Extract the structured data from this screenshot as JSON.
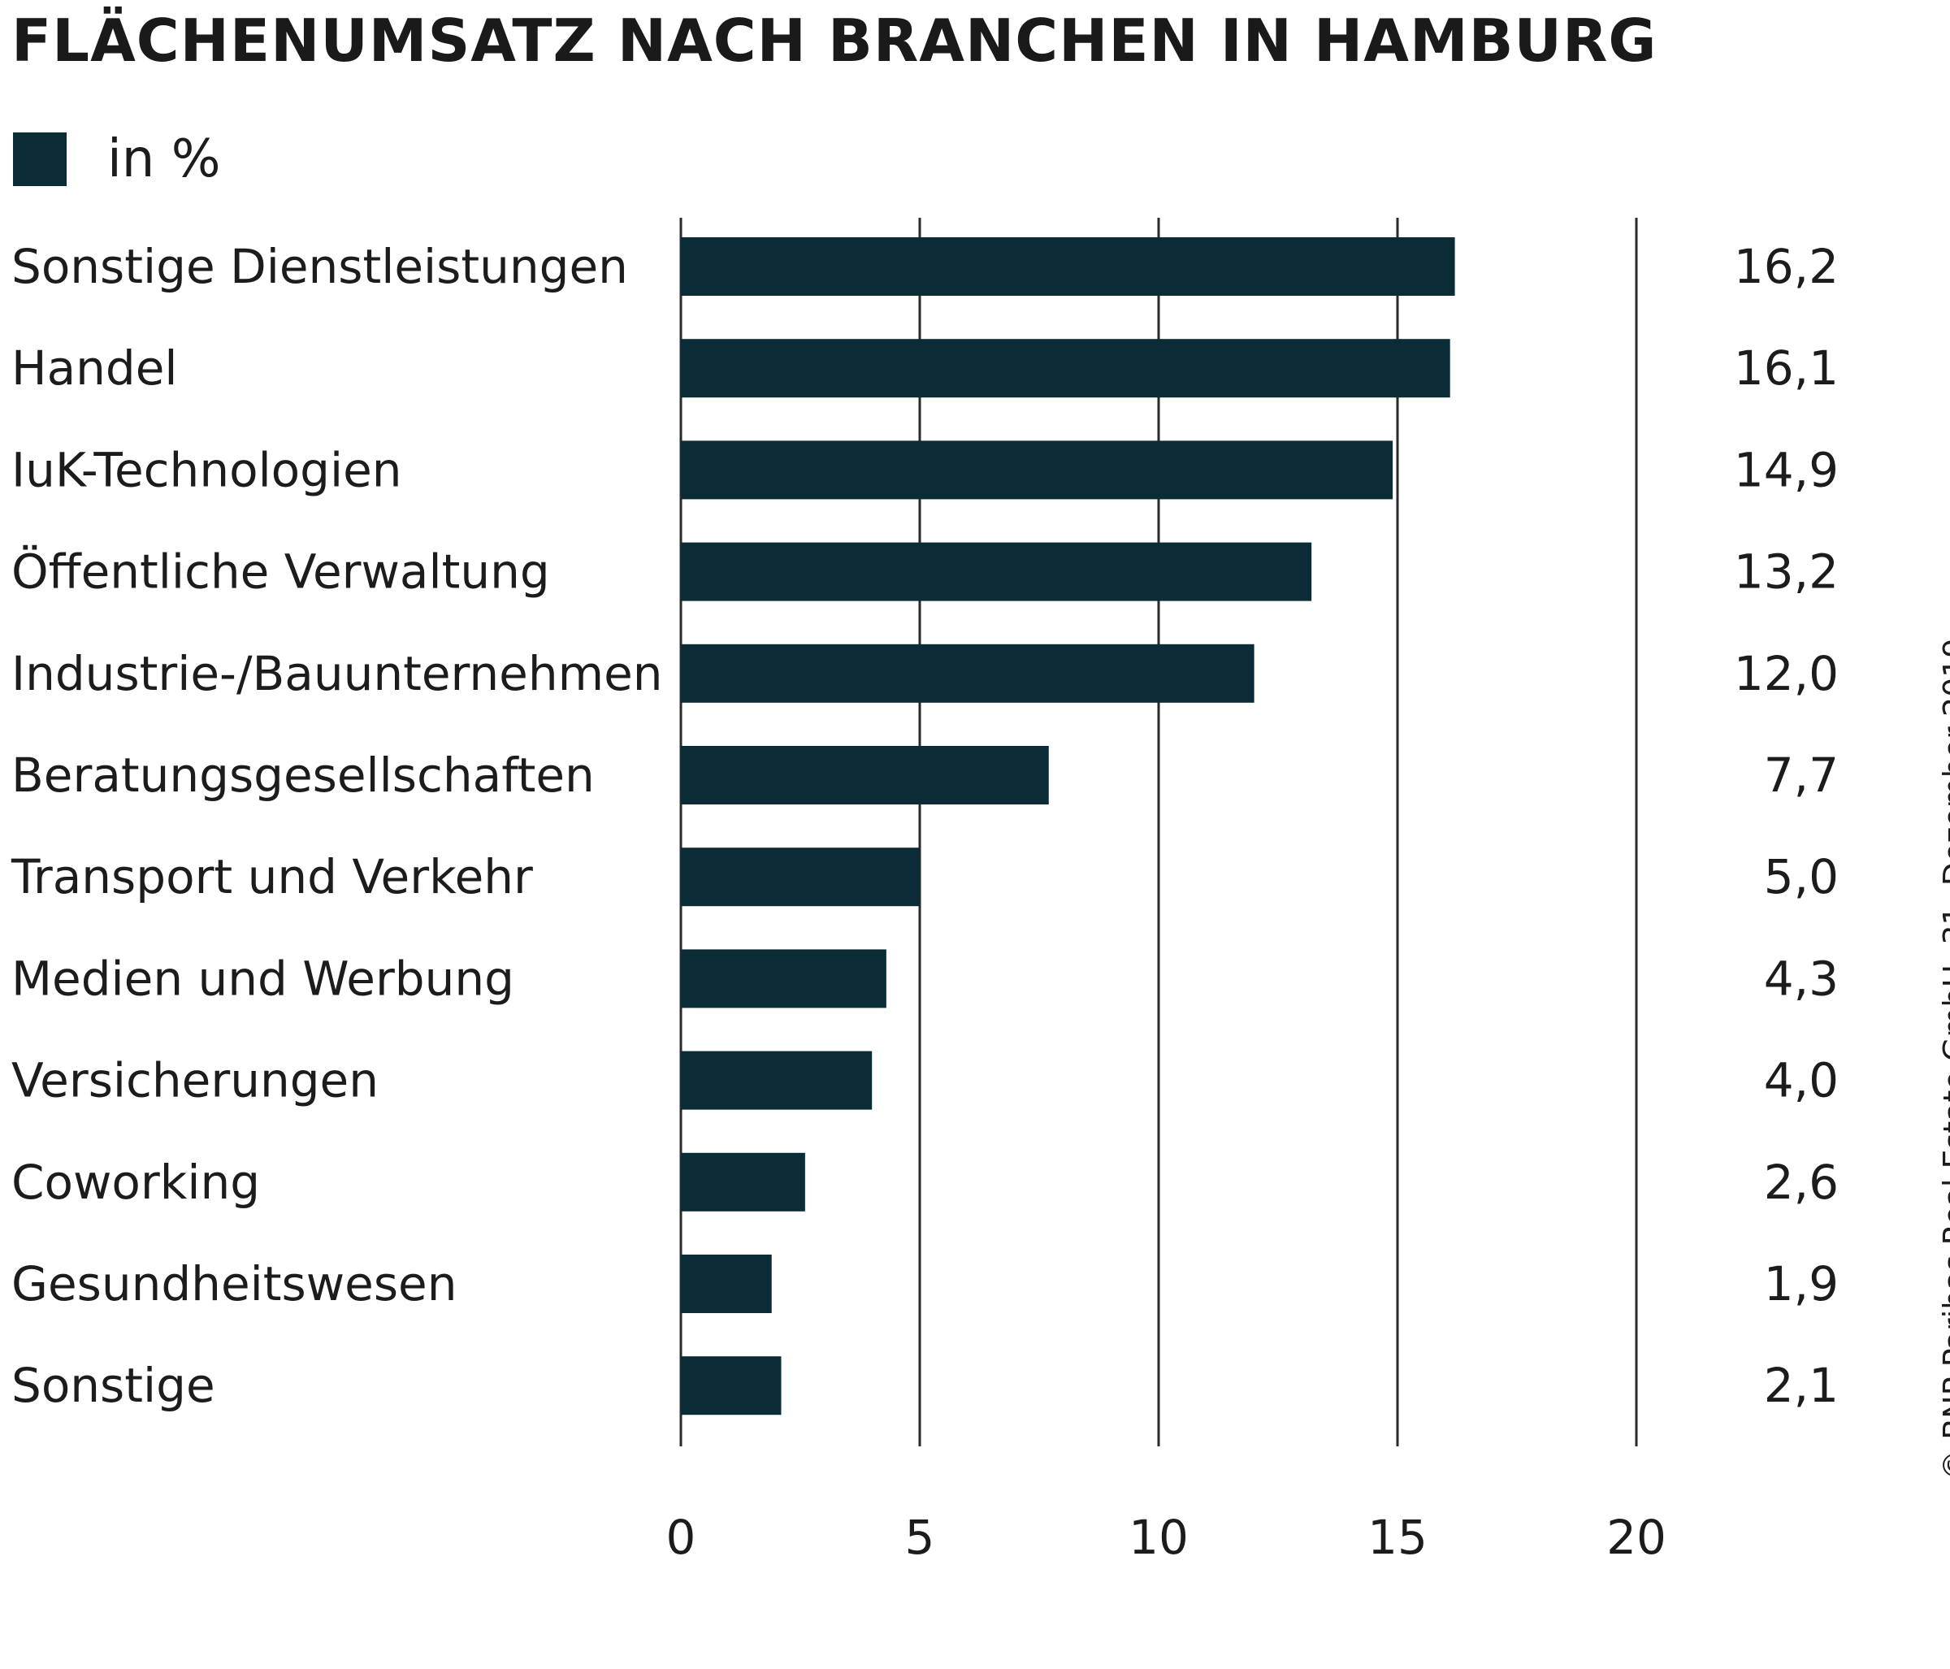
{
  "chart_data": {
    "type": "bar",
    "orientation": "horizontal",
    "title": "FLÄCHENUMSATZ NACH BRANCHEN IN HAMBURG",
    "legend": [
      {
        "label": "in %",
        "color": "#0b2c36"
      }
    ],
    "categories": [
      "Sonstige Dienstleistungen",
      "Handel",
      "IuK-Technologien",
      "Öffentliche Verwaltung",
      "Industrie-/Bauunternehmen",
      "Beratungsgesellschaften",
      "Transport und Verkehr",
      "Medien und Werbung",
      "Versicherungen",
      "Coworking",
      "Gesundheitswesen",
      "Sonstige"
    ],
    "values": [
      16.2,
      16.1,
      14.9,
      13.2,
      12.0,
      7.7,
      5.0,
      4.3,
      4.0,
      2.6,
      1.9,
      2.1
    ],
    "value_labels": [
      "16,2",
      "16,1",
      "14,9",
      "13,2",
      "12,0",
      "7,7",
      "5,0",
      "4,3",
      "4,0",
      "2,6",
      "1,9",
      "2,1"
    ],
    "xlim": [
      0,
      20
    ],
    "xticks": [
      0,
      5,
      10,
      15,
      20
    ],
    "xtick_labels": [
      "0",
      "5",
      "10",
      "15",
      "20"
    ],
    "grid": true,
    "bar_color": "#0b2c36"
  },
  "credit": "© BNP Paribas Real Estate GmbH, 31. Dezember 2019"
}
